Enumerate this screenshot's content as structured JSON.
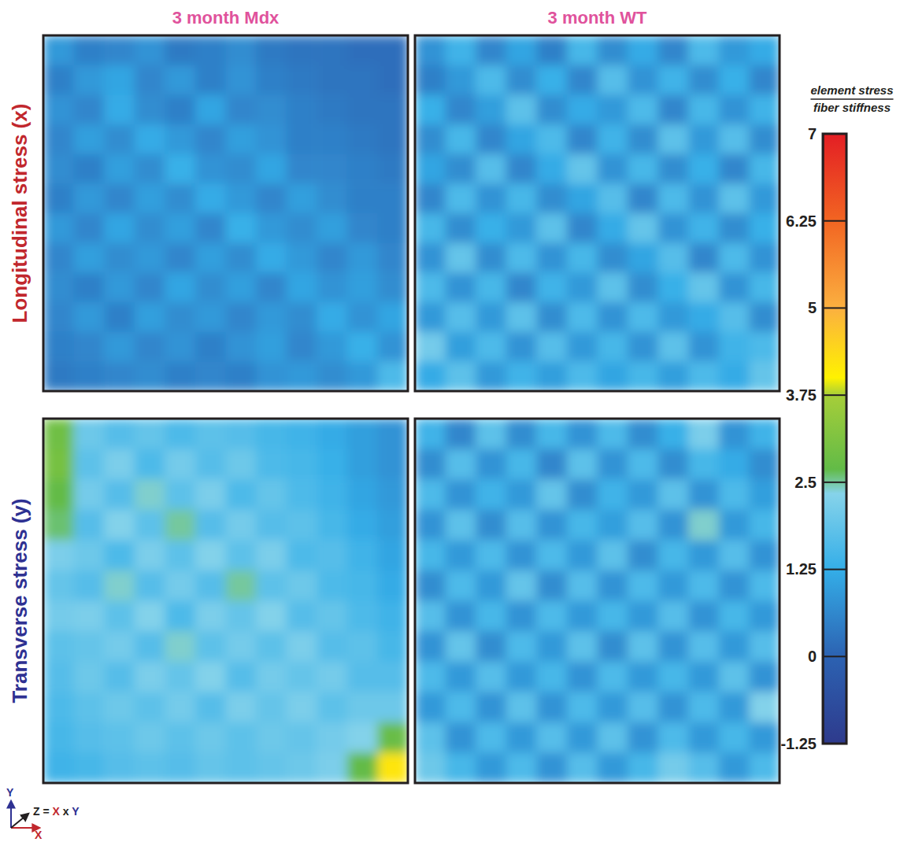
{
  "chart_data": {
    "type": "heatmap",
    "columns": [
      "3 month Mdx",
      "3 month WT"
    ],
    "rows": [
      {
        "title": "Longitudinal stress (x)",
        "panels": [
          {
            "cells": [
              [
                0.9,
                0.5,
                0.6,
                0.8,
                0.4,
                0.5,
                0.7,
                0.4,
                0.3,
                0.3,
                0.2,
                0.2
              ],
              [
                0.5,
                0.9,
                1.1,
                0.6,
                0.9,
                0.5,
                0.8,
                0.5,
                0.4,
                0.3,
                0.3,
                0.2
              ],
              [
                0.8,
                0.6,
                1.2,
                0.7,
                0.5,
                1.1,
                0.6,
                0.7,
                0.5,
                0.4,
                0.3,
                0.3
              ],
              [
                0.6,
                1.0,
                0.7,
                1.2,
                0.9,
                0.6,
                1.0,
                0.8,
                0.5,
                0.5,
                0.4,
                0.3
              ],
              [
                0.7,
                0.5,
                1.0,
                0.7,
                1.3,
                0.8,
                0.7,
                1.1,
                0.6,
                0.6,
                0.5,
                0.4
              ],
              [
                0.5,
                0.9,
                0.6,
                1.0,
                0.7,
                1.2,
                0.9,
                0.6,
                1.0,
                0.7,
                0.5,
                0.5
              ],
              [
                0.9,
                0.6,
                1.1,
                0.7,
                1.0,
                0.6,
                1.3,
                0.9,
                0.7,
                1.0,
                0.6,
                0.5
              ],
              [
                0.6,
                1.0,
                0.7,
                0.9,
                0.6,
                1.0,
                0.7,
                1.2,
                0.9,
                0.6,
                0.9,
                0.6
              ],
              [
                0.7,
                0.5,
                0.9,
                0.6,
                1.1,
                0.7,
                1.0,
                0.6,
                1.1,
                0.8,
                1.0,
                0.7
              ],
              [
                0.6,
                0.9,
                0.5,
                1.0,
                0.7,
                0.9,
                0.6,
                0.9,
                0.7,
                1.2,
                0.8,
                1.1
              ],
              [
                0.5,
                0.6,
                0.9,
                0.6,
                0.8,
                0.5,
                0.8,
                1.0,
                0.6,
                0.9,
                1.3,
                0.8
              ],
              [
                0.4,
                0.5,
                0.6,
                0.7,
                0.5,
                0.6,
                0.5,
                0.8,
                0.9,
                0.7,
                0.9,
                1.6
              ]
            ]
          },
          {
            "cells": [
              [
                0.8,
                1.4,
                0.6,
                1.1,
                0.5,
                1.5,
                0.7,
                1.2,
                0.6,
                1.6,
                0.9,
                1.2
              ],
              [
                0.5,
                0.9,
                1.6,
                0.7,
                1.3,
                0.6,
                1.7,
                0.8,
                1.4,
                0.7,
                1.3,
                0.6
              ],
              [
                1.3,
                0.6,
                1.0,
                1.8,
                0.7,
                1.2,
                0.9,
                1.6,
                0.6,
                1.5,
                0.8,
                1.4
              ],
              [
                0.7,
                1.5,
                0.6,
                1.1,
                1.6,
                0.6,
                1.4,
                0.7,
                1.8,
                0.9,
                1.7,
                0.7
              ],
              [
                1.1,
                0.7,
                1.7,
                0.6,
                1.2,
                1.9,
                0.8,
                1.5,
                0.7,
                1.3,
                0.6,
                1.5
              ],
              [
                0.6,
                1.6,
                0.8,
                1.5,
                0.7,
                1.1,
                1.7,
                0.6,
                1.6,
                0.8,
                1.8,
                0.9
              ],
              [
                1.5,
                0.7,
                1.3,
                0.9,
                1.8,
                0.6,
                1.2,
                1.9,
                0.8,
                1.4,
                0.7,
                1.3
              ],
              [
                0.8,
                1.9,
                0.7,
                1.6,
                0.8,
                1.5,
                0.7,
                1.1,
                1.7,
                0.6,
                1.6,
                0.8
              ],
              [
                1.6,
                0.8,
                1.5,
                0.6,
                1.4,
                0.9,
                1.8,
                0.7,
                1.3,
                1.9,
                0.8,
                1.5
              ],
              [
                0.9,
                1.7,
                0.9,
                1.8,
                0.7,
                1.6,
                0.8,
                1.6,
                0.9,
                1.2,
                1.7,
                0.7
              ],
              [
                2.1,
                1.0,
                1.6,
                0.8,
                1.7,
                0.9,
                1.5,
                0.8,
                1.8,
                0.8,
                1.4,
                1.6
              ],
              [
                1.2,
                1.8,
                0.9,
                1.4,
                1.0,
                1.6,
                1.1,
                1.5,
                1.0,
                1.6,
                1.2,
                1.9
              ]
            ]
          }
        ]
      },
      {
        "title": "Transverse stress (y)",
        "panels": [
          {
            "cells": [
              [
                2.9,
                2.0,
                1.7,
                1.9,
                1.6,
                1.8,
                1.7,
                1.5,
                1.4,
                1.2,
                1.0,
                0.8
              ],
              [
                3.0,
                1.8,
                2.2,
                1.6,
                2.1,
                1.7,
                2.0,
                1.6,
                1.5,
                1.3,
                1.0,
                0.8
              ],
              [
                2.7,
                2.1,
                1.7,
                2.4,
                1.8,
                2.2,
                1.6,
                1.9,
                1.6,
                1.4,
                1.1,
                0.9
              ],
              [
                2.6,
                1.7,
                2.3,
                1.8,
                2.5,
                1.7,
                2.1,
                1.7,
                1.8,
                1.5,
                1.2,
                1.0
              ],
              [
                2.2,
                2.0,
                1.6,
                2.2,
                1.8,
                2.3,
                1.8,
                2.2,
                1.6,
                1.7,
                1.4,
                1.1
              ],
              [
                1.9,
                1.7,
                2.4,
                1.7,
                2.1,
                1.7,
                2.5,
                1.8,
                2.0,
                1.6,
                1.5,
                1.2
              ],
              [
                2.1,
                2.2,
                1.8,
                2.3,
                1.6,
                2.2,
                1.9,
                2.3,
                1.7,
                1.9,
                1.6,
                1.4
              ],
              [
                1.8,
                1.9,
                2.1,
                1.7,
                2.4,
                1.8,
                2.1,
                1.8,
                2.2,
                1.7,
                1.8,
                1.5
              ],
              [
                1.7,
                2.0,
                1.7,
                2.2,
                1.9,
                2.3,
                1.7,
                2.1,
                1.9,
                2.1,
                1.7,
                1.7
              ],
              [
                1.6,
                1.8,
                2.0,
                1.8,
                2.1,
                1.7,
                2.2,
                1.9,
                2.2,
                1.8,
                2.0,
                2.0
              ],
              [
                1.5,
                1.7,
                1.8,
                2.0,
                1.8,
                2.0,
                1.8,
                2.0,
                1.9,
                2.1,
                2.3,
                2.8
              ],
              [
                1.4,
                1.5,
                1.7,
                1.8,
                1.7,
                1.9,
                1.8,
                1.9,
                2.0,
                2.2,
                2.7,
                4.2
              ]
            ]
          },
          {
            "cells": [
              [
                1.4,
                0.6,
                1.8,
                0.7,
                1.5,
                0.8,
                1.6,
                0.7,
                1.3,
                2.2,
                0.8,
                1.4
              ],
              [
                0.7,
                1.7,
                0.8,
                1.5,
                0.6,
                1.8,
                0.8,
                1.6,
                0.7,
                1.5,
                1.2,
                0.7
              ],
              [
                1.6,
                0.8,
                1.4,
                0.9,
                1.9,
                0.7,
                1.4,
                0.9,
                1.8,
                0.8,
                1.6,
                1.0
              ],
              [
                0.8,
                1.8,
                0.7,
                1.7,
                0.8,
                1.5,
                1.0,
                1.7,
                0.8,
                2.4,
                0.9,
                1.5
              ],
              [
                1.5,
                0.9,
                1.6,
                0.8,
                1.6,
                0.9,
                1.8,
                0.7,
                1.5,
                0.9,
                1.7,
                0.8
              ],
              [
                0.7,
                1.6,
                0.9,
                1.9,
                0.7,
                1.7,
                0.8,
                1.6,
                0.9,
                1.6,
                0.8,
                1.6
              ],
              [
                1.7,
                0.8,
                1.5,
                0.8,
                1.6,
                0.9,
                1.5,
                0.9,
                1.7,
                0.8,
                1.5,
                0.9
              ],
              [
                0.8,
                1.9,
                0.7,
                1.6,
                0.9,
                1.8,
                0.7,
                1.8,
                0.8,
                1.7,
                0.9,
                1.7
              ],
              [
                1.6,
                0.9,
                1.7,
                0.9,
                1.5,
                0.8,
                1.6,
                0.9,
                1.5,
                0.9,
                1.8,
                0.8
              ],
              [
                0.9,
                1.6,
                0.8,
                1.8,
                0.8,
                1.6,
                0.9,
                1.7,
                0.8,
                1.6,
                0.9,
                2.3
              ],
              [
                1.8,
                0.8,
                1.6,
                0.9,
                1.7,
                0.9,
                1.8,
                0.8,
                1.6,
                0.9,
                1.5,
                0.9
              ],
              [
                2.0,
                1.5,
                0.9,
                1.6,
                0.8,
                1.7,
                0.9,
                1.5,
                2.1,
                1.7,
                0.9,
                1.6
              ]
            ]
          }
        ]
      }
    ],
    "colorbar": {
      "title": {
        "numerator": "element stress",
        "denominator": "fiber stiffness"
      },
      "range": [
        -1.25,
        7
      ],
      "ticks": [
        -1.25,
        0,
        1.25,
        2.5,
        3.75,
        5,
        6.25,
        7
      ]
    },
    "axes_key": {
      "x": "X",
      "y": "Y",
      "z": "Z = X x Y"
    }
  }
}
